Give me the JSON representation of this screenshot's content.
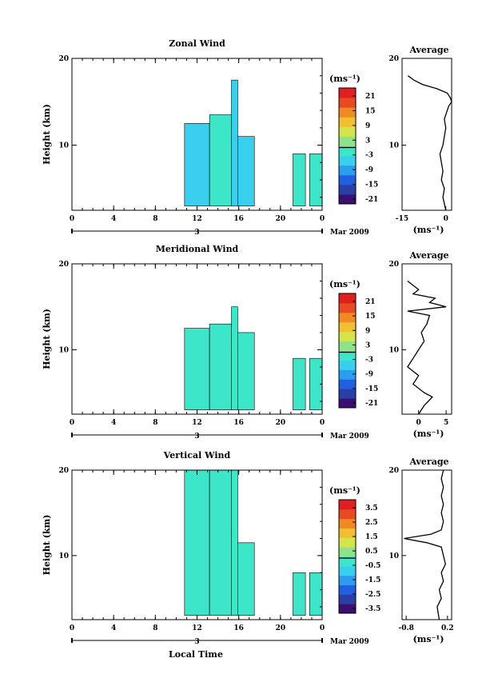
{
  "figure": {
    "xlabel": "Local Time",
    "date_label": "Mar 2009",
    "date_marker": "3"
  },
  "chart_data": [
    {
      "type": "heatmap",
      "title": "Zonal Wind",
      "ylabel": "Height (km)",
      "xlim": [
        0,
        24
      ],
      "ylim": [
        2.5,
        20
      ],
      "x_ticks": [
        "0",
        "4",
        "8",
        "12",
        "16",
        "20",
        "0"
      ],
      "y_ticks": [
        "10",
        "20"
      ],
      "colorbar": {
        "unit": "(ms⁻¹)",
        "ticks": [
          "21",
          "15",
          "9",
          "3",
          "-3",
          "-9",
          "-15",
          "-21"
        ],
        "range": [
          -24,
          24
        ]
      },
      "data_blocks": [
        {
          "x0": 10.8,
          "x1": 13.2,
          "y0": 3.0,
          "y1": 12.5,
          "value": -6
        },
        {
          "x0": 13.2,
          "x1": 15.3,
          "y0": 3.0,
          "y1": 13.5,
          "value": -4
        },
        {
          "x0": 15.3,
          "x1": 15.9,
          "y0": 3.0,
          "y1": 17.5,
          "value": -8
        },
        {
          "x0": 15.9,
          "x1": 17.5,
          "y0": 3.0,
          "y1": 11.0,
          "value": -5
        },
        {
          "x0": 21.2,
          "x1": 22.4,
          "y0": 3.0,
          "y1": 9.0,
          "value": -3
        },
        {
          "x0": 22.8,
          "x1": 24.0,
          "y0": 3.0,
          "y1": 9.0,
          "value": -4
        }
      ],
      "average_profile": {
        "title": "Average",
        "xlim": [
          -15,
          2
        ],
        "x_ticks": [
          "-15",
          "0"
        ],
        "y_ticks": [
          "10",
          "20"
        ],
        "xlabel": "(ms⁻¹)",
        "height": [
          2.5,
          4,
          5,
          6,
          7,
          8,
          9,
          10,
          11,
          12,
          13,
          14,
          14.5,
          15,
          15.5,
          16,
          16.5,
          17,
          17.5,
          18
        ],
        "value": [
          0,
          -1,
          -0.5,
          -1.5,
          -1,
          -1.5,
          -2,
          -1,
          -0.5,
          0,
          -0.5,
          0.5,
          1,
          2,
          1.5,
          0.5,
          -3,
          -8,
          -11,
          -13
        ]
      }
    },
    {
      "type": "heatmap",
      "title": "Meridional Wind",
      "ylabel": "Height (km)",
      "xlim": [
        0,
        24
      ],
      "ylim": [
        2.5,
        20
      ],
      "x_ticks": [
        "0",
        "4",
        "8",
        "12",
        "16",
        "20",
        "0"
      ],
      "y_ticks": [
        "10",
        "20"
      ],
      "colorbar": {
        "unit": "(ms⁻¹)",
        "ticks": [
          "21",
          "15",
          "9",
          "3",
          "-3",
          "-9",
          "-15",
          "-21"
        ],
        "range": [
          -24,
          24
        ]
      },
      "data_blocks": [
        {
          "x0": 10.8,
          "x1": 13.2,
          "y0": 3.0,
          "y1": 12.5,
          "value": -3
        },
        {
          "x0": 13.2,
          "x1": 15.3,
          "y0": 3.0,
          "y1": 13.0,
          "value": -2
        },
        {
          "x0": 15.3,
          "x1": 15.9,
          "y0": 3.0,
          "y1": 15.0,
          "value": -4
        },
        {
          "x0": 15.9,
          "x1": 17.5,
          "y0": 3.0,
          "y1": 12.0,
          "value": -3
        },
        {
          "x0": 21.2,
          "x1": 22.4,
          "y0": 3.0,
          "y1": 9.0,
          "value": -1
        },
        {
          "x0": 22.8,
          "x1": 24.0,
          "y0": 3.0,
          "y1": 9.0,
          "value": -2
        }
      ],
      "average_profile": {
        "title": "Average",
        "xlim": [
          -3,
          6
        ],
        "x_ticks": [
          "0",
          "5"
        ],
        "y_ticks": [
          "10",
          "20"
        ],
        "xlabel": "(ms⁻¹)",
        "height": [
          2.5,
          3.5,
          4.5,
          5,
          6,
          7,
          8,
          9,
          10,
          11,
          12,
          13,
          14,
          14.5,
          15,
          15.5,
          16,
          16.5,
          17,
          17.5,
          18
        ],
        "value": [
          0,
          1,
          2.5,
          1,
          -1,
          0,
          -2,
          -1,
          0,
          1,
          0.5,
          1.5,
          2,
          -2,
          5,
          2,
          3,
          -1,
          0,
          -1,
          -2
        ]
      }
    },
    {
      "type": "heatmap",
      "title": "Vertical Wind",
      "ylabel": "Height (km)",
      "xlim": [
        0,
        24
      ],
      "ylim": [
        2.5,
        20
      ],
      "x_ticks": [
        "0",
        "4",
        "8",
        "12",
        "16",
        "20",
        "0"
      ],
      "y_ticks": [
        "10",
        "20"
      ],
      "colorbar": {
        "unit": "(ms⁻¹)",
        "ticks": [
          "3.5",
          "2.5",
          "1.5",
          "0.5",
          "-0.5",
          "-1.5",
          "-2.5",
          "-3.5"
        ],
        "range": [
          -4,
          4
        ]
      },
      "data_blocks": [
        {
          "x0": 10.8,
          "x1": 13.2,
          "y0": 3.0,
          "y1": 20.0,
          "value": -0.3
        },
        {
          "x0": 13.2,
          "x1": 15.3,
          "y0": 3.0,
          "y1": 20.0,
          "value": -0.2
        },
        {
          "x0": 15.3,
          "x1": 15.9,
          "y0": 3.0,
          "y1": 20.0,
          "value": -0.6
        },
        {
          "x0": 15.9,
          "x1": 17.5,
          "y0": 3.0,
          "y1": 11.5,
          "value": -0.3
        },
        {
          "x0": 21.2,
          "x1": 22.4,
          "y0": 3.0,
          "y1": 8.0,
          "value": -0.1
        },
        {
          "x0": 22.8,
          "x1": 24.0,
          "y0": 3.0,
          "y1": 8.0,
          "value": -0.2
        }
      ],
      "average_profile": {
        "title": "Average",
        "xlim": [
          -0.9,
          0.3
        ],
        "x_ticks": [
          "-0.8",
          "0.2"
        ],
        "y_ticks": [
          "10",
          "20"
        ],
        "xlabel": "(ms⁻¹)",
        "height": [
          2.5,
          4,
          5,
          6,
          7,
          8,
          9,
          10,
          11,
          11.5,
          12,
          12.5,
          13,
          14,
          15,
          16,
          17,
          18,
          19,
          20
        ],
        "value": [
          0,
          -0.05,
          0.05,
          0,
          0.1,
          0.05,
          0.15,
          0.1,
          0.05,
          -0.3,
          -0.85,
          -0.2,
          0.05,
          0.1,
          0.05,
          0.1,
          0.05,
          0.1,
          0.05,
          0.1
        ]
      }
    }
  ]
}
